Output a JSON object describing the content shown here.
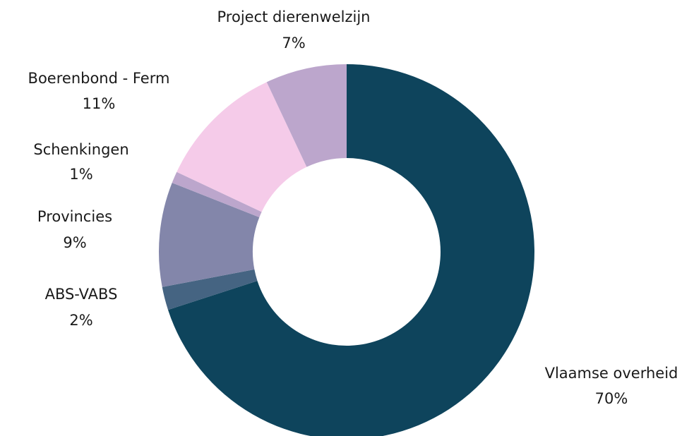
{
  "chart_data": {
    "type": "donut",
    "categories": [
      "Vlaamse overheid",
      "ABS-VABS",
      "Provincies",
      "Schenkingen",
      "Boerenbond - Ferm",
      "Project dierenwelzijn"
    ],
    "values": [
      70,
      2,
      9,
      1,
      11,
      7
    ],
    "value_labels": [
      "70%",
      "2%",
      "9%",
      "1%",
      "11%",
      "7%"
    ],
    "colors": [
      "#0e445c",
      "#456482",
      "#8386aa",
      "#bca6cc",
      "#f5cbe9",
      "#bca6cc"
    ]
  }
}
